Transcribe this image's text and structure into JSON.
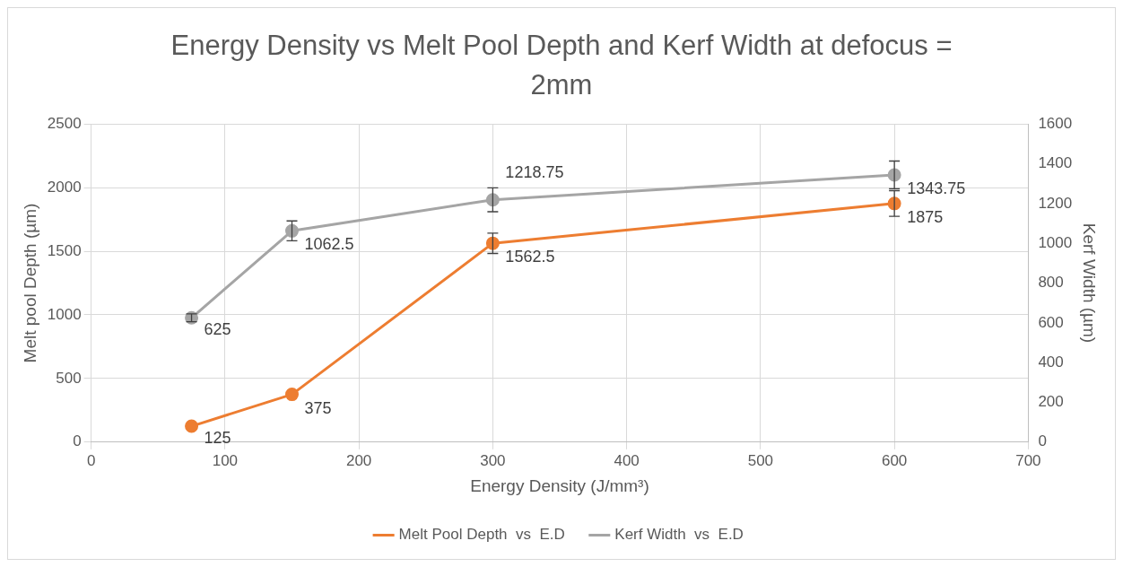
{
  "chart_data": {
    "type": "line",
    "title": "Energy Density vs Melt Pool Depth and Kerf Width at defocus = 2mm",
    "xlabel": "Energy Density (J/mm³)",
    "ylabel": "Melt pool Depth (µm)",
    "y2label": "Kerf Width (µm)",
    "x": [
      75,
      150,
      300,
      600
    ],
    "series": [
      {
        "name": "Melt Pool Depth  vs  E.D",
        "color": "#ed7d31",
        "values": [
          125,
          375,
          1562.5,
          1875
        ],
        "errors": [
          null,
          null,
          80,
          100
        ]
      },
      {
        "name": "Kerf Width  vs  E.D",
        "color": "#a5a5a5",
        "axis": "y2",
        "values": [
          625,
          1062.5,
          1218.75,
          1343.75
        ],
        "errors": [
          20,
          50,
          60,
          70
        ]
      }
    ],
    "xlim": [
      0,
      700
    ],
    "xticks": [
      0,
      100,
      200,
      300,
      400,
      500,
      600,
      700
    ],
    "ylim": [
      0,
      2500
    ],
    "yticks": [
      0,
      500,
      1000,
      1500,
      2000,
      2500
    ],
    "y2lim": [
      0,
      1600
    ],
    "y2ticks": [
      0,
      200,
      400,
      600,
      800,
      1000,
      1200,
      1400,
      1600
    ],
    "grid": true,
    "legend": "bottom",
    "marker": "circle",
    "line_style": "solid",
    "data_labels": true
  }
}
